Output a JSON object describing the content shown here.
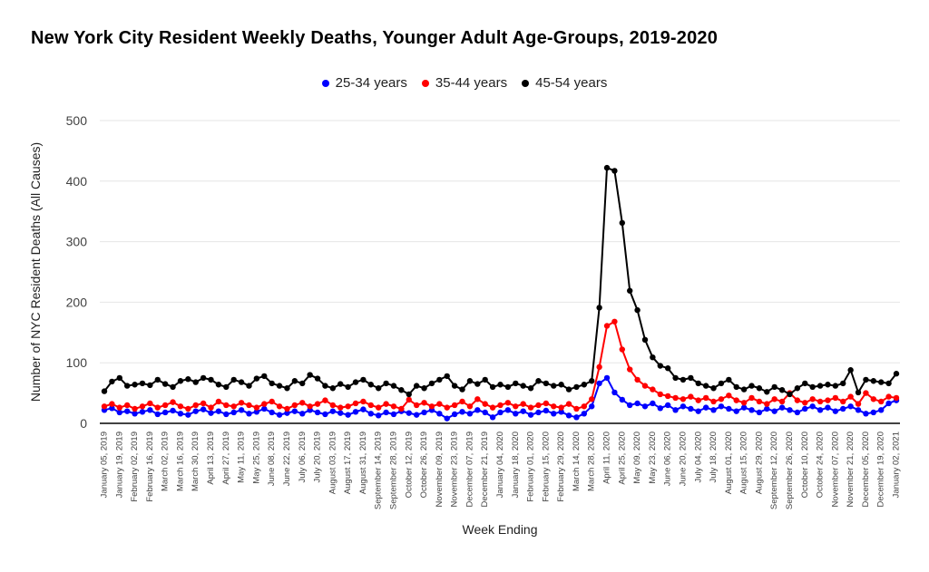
{
  "chart_data": {
    "type": "line",
    "title": "New York City Resident Weekly Deaths, Younger Adult Age-Groups, 2019-2020",
    "xlabel": "Week Ending",
    "ylabel": "Number of NYC Resident Deaths (All Causes)",
    "ylim": [
      0,
      500
    ],
    "yticks": [
      0,
      100,
      200,
      300,
      400,
      500
    ],
    "grid": true,
    "legend_position": "top",
    "x_tick_step": 2,
    "x_tick_labels": [
      "January 05, 2019",
      "January 19, 2019",
      "February 02, 2019",
      "February 16, 2019",
      "March 02, 2019",
      "March 16, 2019",
      "March 30, 2019",
      "April 13, 2019",
      "April 27, 2019",
      "May 11, 2019",
      "May 25, 2019",
      "June 08, 2019",
      "June 22, 2019",
      "July 06, 2019",
      "July 20, 2019",
      "August 03, 2019",
      "August 17, 2019",
      "August 31, 2019",
      "September 14, 2019",
      "September 28, 2019",
      "October 12, 2019",
      "October 26, 2019",
      "November 09, 2019",
      "November 23, 2019",
      "December 07, 2019",
      "December 21, 2019",
      "January 04, 2020",
      "January 18, 2020",
      "February 01, 2020",
      "February 15, 2020",
      "February 29, 2020",
      "March 14, 2020",
      "March 28, 2020",
      "April 11, 2020",
      "April 25, 2020",
      "May 09, 2020",
      "May 23, 2020",
      "June 06, 2020",
      "June 20, 2020",
      "July 04, 2020",
      "July 18, 2020",
      "August 01, 2020",
      "August 15, 2020",
      "August 29, 2020",
      "September 12, 2020",
      "September 26, 2020",
      "October 10, 2020",
      "October 24, 2020",
      "November 07, 2020",
      "November 21, 2020",
      "December 05, 2020",
      "December 19, 2020",
      "January 02, 2021"
    ],
    "series": [
      {
        "name": "25-34 years",
        "color": "#0000ff",
        "values": [
          22,
          25,
          18,
          20,
          16,
          19,
          22,
          15,
          18,
          21,
          16,
          14,
          20,
          23,
          17,
          20,
          15,
          18,
          22,
          16,
          19,
          24,
          18,
          14,
          17,
          20,
          16,
          22,
          18,
          15,
          20,
          17,
          14,
          19,
          23,
          16,
          13,
          18,
          15,
          20,
          17,
          14,
          18,
          22,
          16,
          8,
          15,
          19,
          16,
          22,
          18,
          10,
          18,
          22,
          16,
          20,
          14,
          18,
          21,
          16,
          19,
          13,
          10,
          16,
          28,
          66,
          75,
          51,
          39,
          30,
          33,
          28,
          33,
          25,
          30,
          22,
          28,
          24,
          20,
          26,
          22,
          28,
          24,
          20,
          26,
          22,
          18,
          24,
          20,
          26,
          22,
          18,
          24,
          28,
          22,
          26,
          20,
          24,
          28,
          22,
          16,
          18,
          22,
          33,
          38
        ]
      },
      {
        "name": "35-44 years",
        "color": "#ff0000",
        "values": [
          28,
          32,
          26,
          30,
          24,
          28,
          33,
          26,
          30,
          35,
          28,
          24,
          30,
          33,
          26,
          36,
          30,
          28,
          34,
          30,
          26,
          32,
          36,
          28,
          24,
          30,
          34,
          28,
          32,
          38,
          30,
          26,
          28,
          33,
          36,
          30,
          26,
          32,
          28,
          24,
          39,
          30,
          34,
          28,
          32,
          26,
          30,
          36,
          28,
          40,
          32,
          26,
          30,
          34,
          28,
          32,
          26,
          30,
          33,
          28,
          26,
          32,
          24,
          28,
          40,
          93,
          161,
          168,
          122,
          89,
          72,
          62,
          56,
          48,
          45,
          42,
          40,
          44,
          38,
          42,
          36,
          40,
          46,
          38,
          34,
          42,
          36,
          32,
          40,
          36,
          50,
          38,
          34,
          40,
          36,
          38,
          42,
          36,
          44,
          32,
          50,
          40,
          36,
          44,
          42
        ]
      },
      {
        "name": "45-54 years",
        "color": "#000000",
        "values": [
          53,
          69,
          75,
          62,
          64,
          66,
          63,
          72,
          65,
          60,
          70,
          73,
          68,
          75,
          72,
          64,
          60,
          72,
          68,
          62,
          74,
          78,
          66,
          62,
          58,
          70,
          66,
          80,
          74,
          62,
          58,
          65,
          60,
          68,
          72,
          64,
          58,
          66,
          62,
          55,
          48,
          62,
          58,
          66,
          72,
          78,
          62,
          56,
          70,
          65,
          72,
          60,
          64,
          60,
          66,
          62,
          58,
          70,
          66,
          62,
          64,
          56,
          60,
          64,
          70,
          191,
          422,
          417,
          331,
          219,
          187,
          138,
          109,
          95,
          91,
          75,
          72,
          75,
          66,
          62,
          58,
          66,
          72,
          60,
          56,
          62,
          58,
          52,
          60,
          55,
          48,
          58,
          66,
          60,
          62,
          64,
          62,
          66,
          88,
          51,
          72,
          70,
          68,
          66,
          82
        ]
      }
    ]
  }
}
